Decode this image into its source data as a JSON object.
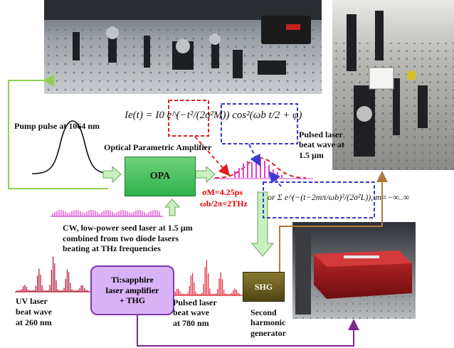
{
  "labels": {
    "pump": "Pump pulse at 1064 nm",
    "opa_title": "Optical Parametric Amplifier",
    "opa_box": "OPA",
    "pulsed_15": "Pulsed laser\nbeat wave at\n1.5 µm",
    "sigma": "σM=4.25ps",
    "omega": "ωb/2π=2THz",
    "cw_seed": "CW, low-power seed laser at 1.5 µm\ncombined from two diode lasers\nbeating at THz frequencies",
    "ti_box": "Ti:sapphire\nlaser amplifier\n+ THG",
    "shg_box": "SHG",
    "uv": "UV laser\nbeat wave\nat 260 nm",
    "pulsed_780": "Pulsed laser\nbeat wave\nat 780 nm",
    "shg_caption": "Second\nharmonic\ngenerator"
  },
  "equations": {
    "main": "Ie(t) = I0 e^(−t²/(2σ²M)) cos²(ωb t/2 + φ)",
    "alt": "or Σ e^(−(t−2mπ/ωb)²/(2σ²L)), m=−∞..∞"
  },
  "colors": {
    "green_line": "#8fd14f",
    "brown_line": "#b07a3a",
    "purple_line": "#7a2a8a",
    "red_dashed": "#e02020",
    "blue_dashed": "#3a3ad0",
    "magenta": "#e040d0",
    "crimson": "#b01030",
    "sigma_text": "#e00000",
    "opa_fill": "#2db24a",
    "ti_fill": "#d9b3f5",
    "shg_fill": "#6b5e1f"
  }
}
